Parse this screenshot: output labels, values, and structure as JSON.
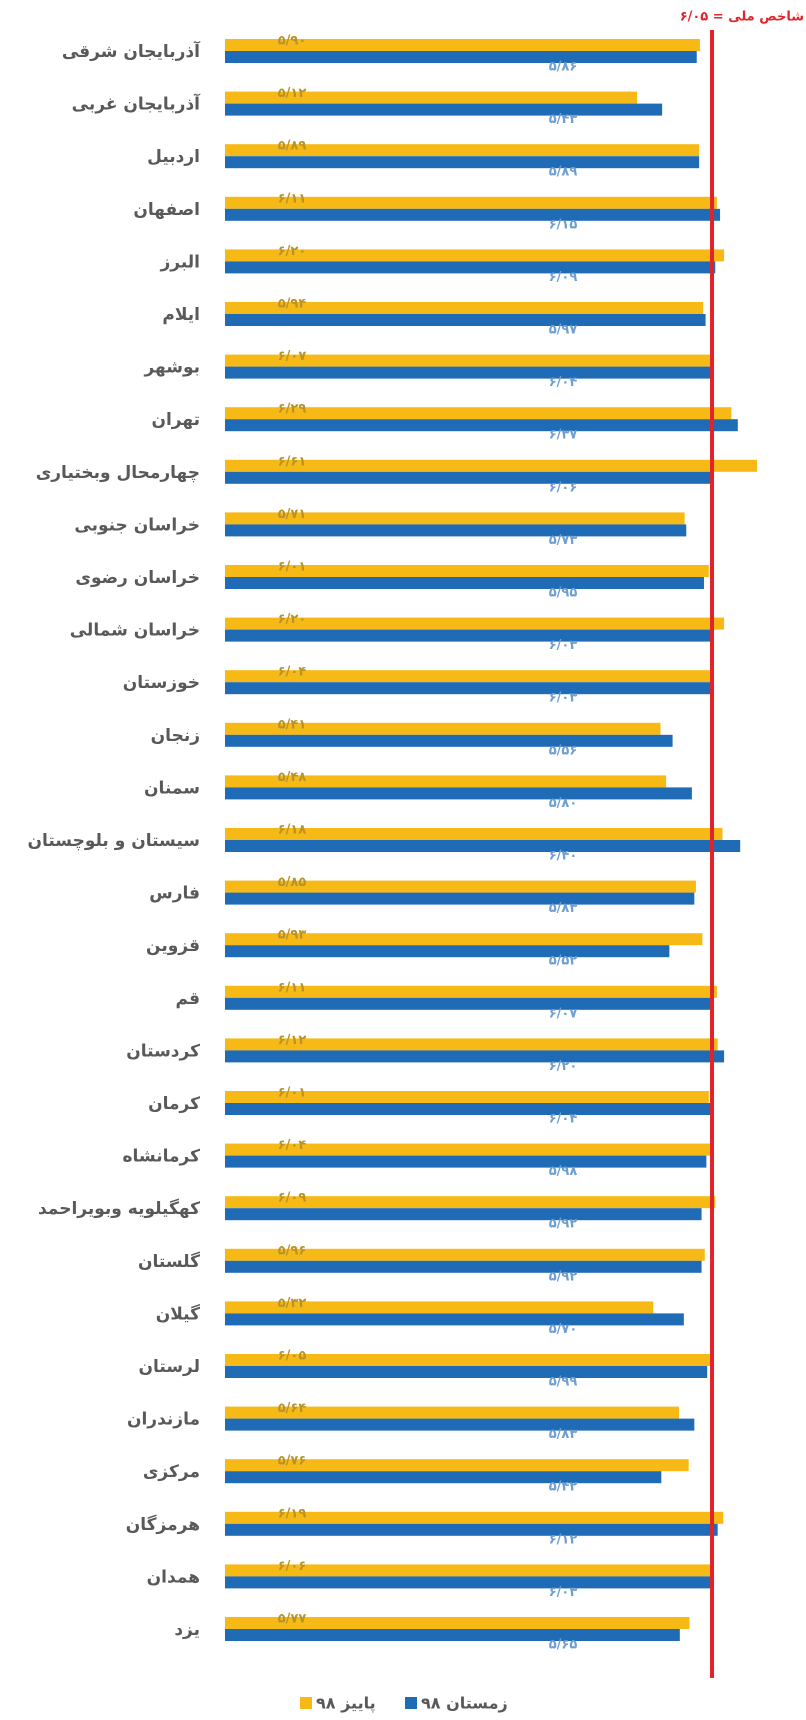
{
  "chart_data": {
    "type": "bar",
    "orientation": "horizontal",
    "categories": [
      "آذربایجان شرقی",
      "آذربایجان غربی",
      "اردبیل",
      "اصفهان",
      "البرز",
      "ایلام",
      "بوشهر",
      "تهران",
      "چهارمحال وبختیاری",
      "خراسان جنوبی",
      "خراسان رضوی",
      "خراسان شمالی",
      "خوزستان",
      "زنجان",
      "سمنان",
      "سیستان و بلوچستان",
      "فارس",
      "قزوین",
      "قم",
      "کردستان",
      "کرمان",
      "کرمانشاه",
      "کهگیلویه وبویراحمد",
      "گلستان",
      "گیلان",
      "لرستان",
      "مازندران",
      "مرکزی",
      "هرمزگان",
      "همدان",
      "یزد"
    ],
    "series": [
      {
        "name": "پاییز ۹۸",
        "color": "#f7b916",
        "label_color": "#b8932a",
        "values": [
          5.9,
          5.12,
          5.89,
          6.11,
          6.2,
          5.94,
          6.07,
          6.29,
          6.61,
          5.71,
          6.01,
          6.2,
          6.04,
          5.41,
          5.48,
          6.18,
          5.85,
          5.93,
          6.11,
          6.12,
          6.01,
          6.04,
          6.09,
          5.96,
          5.32,
          6.05,
          5.64,
          5.76,
          6.19,
          6.06,
          5.77
        ],
        "value_labels": [
          "۵/۹۰",
          "۵/۱۲",
          "۵/۸۹",
          "۶/۱۱",
          "۶/۲۰",
          "۵/۹۴",
          "۶/۰۷",
          "۶/۲۹",
          "۶/۶۱",
          "۵/۷۱",
          "۶/۰۱",
          "۶/۲۰",
          "۶/۰۴",
          "۵/۴۱",
          "۵/۴۸",
          "۶/۱۸",
          "۵/۸۵",
          "۵/۹۳",
          "۶/۱۱",
          "۶/۱۲",
          "۶/۰۱",
          "۶/۰۴",
          "۶/۰۹",
          "۵/۹۶",
          "۵/۳۲",
          "۶/۰۵",
          "۵/۶۴",
          "۵/۷۶",
          "۶/۱۹",
          "۶/۰۶",
          "۵/۷۷"
        ]
      },
      {
        "name": "زمستان ۹۸",
        "color": "#1f6bb5",
        "label_color": "#6f9fd2",
        "values": [
          5.86,
          5.43,
          5.89,
          6.15,
          6.09,
          5.97,
          6.04,
          6.37,
          6.06,
          5.73,
          5.95,
          6.03,
          6.03,
          5.56,
          5.8,
          6.4,
          5.83,
          5.52,
          6.07,
          6.2,
          6.04,
          5.98,
          5.92,
          5.92,
          5.7,
          5.99,
          5.83,
          5.42,
          6.12,
          6.03,
          5.65
        ],
        "value_labels": [
          "۵/۸۶",
          "۵/۴۳",
          "۵/۸۹",
          "۶/۱۵",
          "۶/۰۹",
          "۵/۹۷",
          "۶/۰۴",
          "۶/۳۷",
          "۶/۰۶",
          "۵/۷۳",
          "۵/۹۵",
          "۶/۰۳",
          "۶/۰۳",
          "۵/۵۶",
          "۵/۸۰",
          "۶/۴۰",
          "۵/۸۳",
          "۵/۵۲",
          "۶/۰۷",
          "۶/۲۰",
          "۶/۰۴",
          "۵/۹۸",
          "۵/۹۲",
          "۵/۹۲",
          "۵/۷۰",
          "۵/۹۹",
          "۵/۸۳",
          "۵/۴۲",
          "۶/۱۲",
          "۶/۰۳",
          "۵/۶۵"
        ]
      }
    ],
    "reference_line": {
      "value": 6.05,
      "label": "شاخص ملی = ۶/۰۵",
      "color": "#e0242a"
    }
  }
}
